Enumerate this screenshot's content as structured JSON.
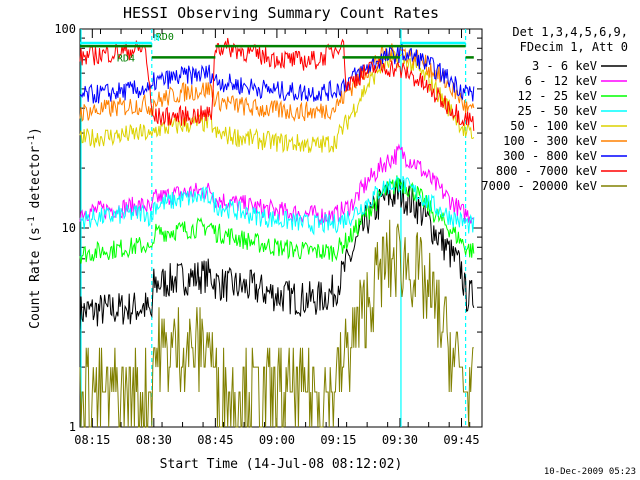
{
  "chart_data": {
    "type": "line",
    "title": "HESSI Observing Summary Count Rates",
    "xlabel": "Start Time (14-Jul-08 08:12:02)",
    "ylabel": "Count Rate (s⁻¹ detector⁻¹)",
    "ylabel_base": "Count Rate (s",
    "ylabel_mid": " detector",
    "ylabel_end": ")",
    "ylabel_exp": "-1",
    "y_scale": "log",
    "ylim": [
      1,
      100
    ],
    "xlim_minutes": [
      0,
      98
    ],
    "y_ticks": [
      {
        "v": 1,
        "label": "1"
      },
      {
        "v": 10,
        "label": "10"
      },
      {
        "v": 100,
        "label": "100"
      }
    ],
    "x_ticks": [
      {
        "m": 3,
        "label": "08:15"
      },
      {
        "m": 18,
        "label": "08:30"
      },
      {
        "m": 33,
        "label": "08:45"
      },
      {
        "m": 48,
        "label": "09:00"
      },
      {
        "m": 63,
        "label": "09:15"
      },
      {
        "m": 78,
        "label": "09:30"
      },
      {
        "m": 93,
        "label": "09:45"
      }
    ],
    "legend_header": [
      "Det 1,3,4,5,6,9,",
      "FDecim 1, Att 0"
    ],
    "legend_position": "right",
    "series": [
      {
        "name": "3 - 6 keV",
        "color": "#000000",
        "points": [
          [
            0,
            3.8
          ],
          [
            8,
            3.9
          ],
          [
            16,
            4.0
          ],
          [
            17.5,
            3.6
          ],
          [
            18,
            5.2
          ],
          [
            25,
            5.6
          ],
          [
            32,
            5.8
          ],
          [
            33,
            5.3
          ],
          [
            37,
            5.1
          ],
          [
            42,
            5.0
          ],
          [
            48,
            4.6
          ],
          [
            54,
            4.4
          ],
          [
            58,
            4.4
          ],
          [
            62,
            4.8
          ],
          [
            66,
            7.2
          ],
          [
            70,
            11
          ],
          [
            74,
            14
          ],
          [
            78,
            15
          ],
          [
            82,
            13
          ],
          [
            86,
            10
          ],
          [
            90,
            7.6
          ],
          [
            93,
            6.2
          ],
          [
            94,
            4.6
          ],
          [
            96,
            4.5
          ]
        ]
      },
      {
        "name": "6 - 12 keV",
        "color": "#ff00ff",
        "points": [
          [
            0,
            12
          ],
          [
            8,
            12.5
          ],
          [
            16,
            13
          ],
          [
            17.5,
            12
          ],
          [
            18,
            14
          ],
          [
            25,
            15
          ],
          [
            32,
            15.5
          ],
          [
            33,
            14
          ],
          [
            37,
            13.5
          ],
          [
            42,
            12.8
          ],
          [
            48,
            12.2
          ],
          [
            54,
            11.8
          ],
          [
            58,
            11.6
          ],
          [
            62,
            11.5
          ],
          [
            66,
            13
          ],
          [
            70,
            17
          ],
          [
            74,
            21
          ],
          [
            78,
            24
          ],
          [
            82,
            21
          ],
          [
            86,
            17
          ],
          [
            90,
            14
          ],
          [
            93,
            12
          ],
          [
            94,
            11.8
          ],
          [
            96,
            11.5
          ]
        ]
      },
      {
        "name": "12 - 25 keV",
        "color": "#00ff00",
        "points": [
          [
            0,
            7.4
          ],
          [
            8,
            7.8
          ],
          [
            16,
            8.2
          ],
          [
            17.5,
            7.4
          ],
          [
            18,
            9.4
          ],
          [
            25,
            9.8
          ],
          [
            32,
            10.2
          ],
          [
            33,
            9.5
          ],
          [
            37,
            9.1
          ],
          [
            42,
            8.5
          ],
          [
            48,
            8.0
          ],
          [
            54,
            7.7
          ],
          [
            58,
            7.6
          ],
          [
            62,
            7.6
          ],
          [
            66,
            9
          ],
          [
            70,
            12
          ],
          [
            74,
            15
          ],
          [
            78,
            17
          ],
          [
            82,
            15
          ],
          [
            86,
            12
          ],
          [
            90,
            10
          ],
          [
            93,
            8.6
          ],
          [
            94,
            8
          ],
          [
            96,
            7.6
          ]
        ]
      },
      {
        "name": "25 - 50 keV",
        "color": "#00ffff",
        "points": [
          [
            0,
            11
          ],
          [
            8,
            11.5
          ],
          [
            16,
            12
          ],
          [
            17.5,
            11
          ],
          [
            18,
            13
          ],
          [
            25,
            14
          ],
          [
            32,
            14.5
          ],
          [
            33,
            13
          ],
          [
            37,
            12.4
          ],
          [
            42,
            11.6
          ],
          [
            48,
            11
          ],
          [
            54,
            10.6
          ],
          [
            58,
            10.4
          ],
          [
            62,
            10.5
          ],
          [
            66,
            11.5
          ],
          [
            70,
            13.5
          ],
          [
            74,
            16
          ],
          [
            78,
            17
          ],
          [
            82,
            15
          ],
          [
            86,
            13
          ],
          [
            90,
            11.5
          ],
          [
            93,
            10.8
          ],
          [
            94,
            10.5
          ],
          [
            96,
            10.2
          ]
        ]
      },
      {
        "name": "50 - 100 keV",
        "color": "#dcd200",
        "points": [
          [
            0,
            28
          ],
          [
            8,
            29
          ],
          [
            16,
            30
          ],
          [
            17.5,
            28
          ],
          [
            18,
            31
          ],
          [
            25,
            33
          ],
          [
            32,
            34
          ],
          [
            33,
            29.5
          ],
          [
            37,
            29
          ],
          [
            42,
            28
          ],
          [
            48,
            27
          ],
          [
            54,
            26.5
          ],
          [
            58,
            26
          ],
          [
            62,
            27
          ],
          [
            65,
            34
          ],
          [
            69,
            48
          ],
          [
            73,
            64
          ],
          [
            78,
            72
          ],
          [
            82,
            64
          ],
          [
            86,
            52
          ],
          [
            90,
            40
          ],
          [
            93,
            33
          ],
          [
            94,
            30
          ],
          [
            96,
            29
          ]
        ]
      },
      {
        "name": "100 - 300 keV",
        "color": "#ff8000",
        "points": [
          [
            0,
            38
          ],
          [
            8,
            40
          ],
          [
            16,
            42
          ],
          [
            17.5,
            40
          ],
          [
            18,
            43
          ],
          [
            25,
            48
          ],
          [
            32,
            50
          ],
          [
            33,
            44
          ],
          [
            37,
            42
          ],
          [
            42,
            40
          ],
          [
            48,
            39
          ],
          [
            54,
            38.5
          ],
          [
            58,
            38.5
          ],
          [
            62,
            40
          ],
          [
            65,
            48
          ],
          [
            69,
            60
          ],
          [
            73,
            72
          ],
          [
            78,
            78
          ],
          [
            82,
            72
          ],
          [
            86,
            62
          ],
          [
            90,
            52
          ],
          [
            93,
            44
          ],
          [
            94,
            40
          ],
          [
            96,
            38
          ]
        ]
      },
      {
        "name": "300 - 800 keV",
        "color": "#0000ff",
        "points": [
          [
            0,
            46
          ],
          [
            8,
            48
          ],
          [
            16,
            50
          ],
          [
            17.5,
            48
          ],
          [
            18,
            54
          ],
          [
            25,
            58
          ],
          [
            32,
            60
          ],
          [
            33,
            55
          ],
          [
            37,
            53
          ],
          [
            42,
            51
          ],
          [
            48,
            49
          ],
          [
            54,
            48
          ],
          [
            58,
            48
          ],
          [
            62,
            49
          ],
          [
            65,
            54
          ],
          [
            69,
            62
          ],
          [
            73,
            70
          ],
          [
            78,
            76
          ],
          [
            82,
            72
          ],
          [
            86,
            64
          ],
          [
            90,
            56
          ],
          [
            93,
            50
          ],
          [
            94,
            49
          ],
          [
            96,
            47
          ]
        ]
      },
      {
        "name": "800 - 7000 keV",
        "color": "#ff0000",
        "points": [
          [
            0,
            72
          ],
          [
            8,
            76
          ],
          [
            16,
            80
          ],
          [
            17.5,
            38
          ],
          [
            18,
            36
          ],
          [
            25,
            36.5
          ],
          [
            32,
            37
          ],
          [
            33,
            82
          ],
          [
            37,
            80
          ],
          [
            42,
            75
          ],
          [
            48,
            71
          ],
          [
            54,
            69
          ],
          [
            58,
            70
          ],
          [
            62,
            78
          ],
          [
            64,
            90
          ],
          [
            65,
            52
          ],
          [
            68,
            58
          ],
          [
            72,
            64
          ],
          [
            76,
            64
          ],
          [
            80,
            60
          ],
          [
            84,
            52
          ],
          [
            88,
            44
          ],
          [
            92,
            38
          ],
          [
            93,
            36
          ],
          [
            94,
            36
          ],
          [
            96,
            34
          ]
        ]
      },
      {
        "name": "7000 - 20000 keV",
        "color": "#808000",
        "points": [
          [
            0,
            1.5
          ],
          [
            8,
            1.5
          ],
          [
            16,
            1.5
          ],
          [
            17.5,
            1.5
          ],
          [
            18,
            2.4
          ],
          [
            25,
            2.5
          ],
          [
            32,
            2.6
          ],
          [
            33,
            1.6
          ],
          [
            37,
            1.5
          ],
          [
            42,
            1.5
          ],
          [
            48,
            1.5
          ],
          [
            54,
            1.5
          ],
          [
            58,
            1.5
          ],
          [
            62,
            1.6
          ],
          [
            66,
            2.6
          ],
          [
            70,
            4.2
          ],
          [
            74,
            6.4
          ],
          [
            78,
            7.2
          ],
          [
            82,
            6
          ],
          [
            86,
            4.2
          ],
          [
            90,
            2.6
          ],
          [
            93,
            1.8
          ],
          [
            94,
            1.5
          ],
          [
            96,
            1.5
          ]
        ]
      }
    ],
    "reference_lines": [
      {
        "label": "RD0",
        "color": "#008000",
        "value": 82
      },
      {
        "label": "RD4",
        "color": "#008000",
        "value": 72
      },
      {
        "label": "N",
        "color": "#00ffff",
        "value": 85
      }
    ],
    "vertical_markers_solid_minutes": [
      0,
      78
    ],
    "vertical_markers_dashed_minutes": [
      17.5,
      94
    ]
  },
  "footer": {
    "timestamp": "10-Dec-2009 05:23"
  }
}
